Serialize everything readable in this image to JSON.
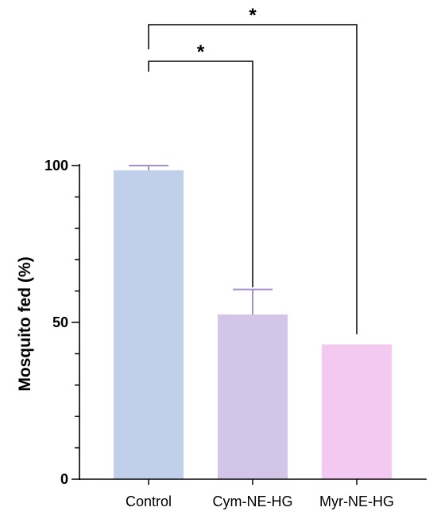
{
  "chart_data": {
    "type": "bar",
    "title": "",
    "xlabel": "",
    "ylabel": "Mosquito fed (%)",
    "ylim": [
      0,
      100
    ],
    "yticks": [
      0,
      50,
      100
    ],
    "categories": [
      "Control",
      "Cym-NE-HG",
      "Myr-NE-HG"
    ],
    "values": [
      98.5,
      52.5,
      43
    ],
    "errors": [
      1.5,
      8,
      0
    ],
    "colors": [
      "#c0d0ea",
      "#d2c5e8",
      "#f3c9f1"
    ],
    "error_color": "#a48fd0",
    "significance": [
      {
        "from": "Control",
        "to": "Cym-NE-HG",
        "label": "*"
      },
      {
        "from": "Control",
        "to": "Myr-NE-HG",
        "label": "*"
      }
    ],
    "grid": false,
    "legend": "none"
  }
}
